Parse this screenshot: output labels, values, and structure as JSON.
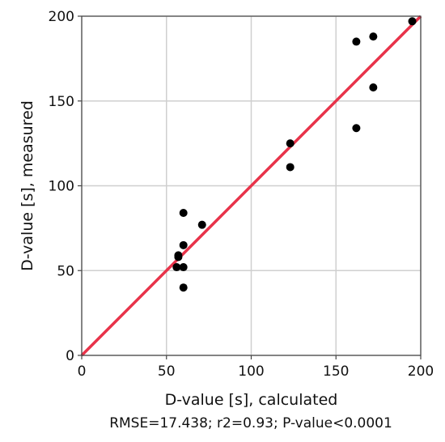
{
  "chart_data": {
    "type": "scatter",
    "xlabel": "D-value [s], calculated",
    "ylabel": "D-value [s], measured",
    "caption": "RMSE=17.438; r2=0.93; P-value<0.0001",
    "xlim": [
      0,
      200
    ],
    "ylim": [
      0,
      200
    ],
    "xticks": [
      0,
      50,
      100,
      150,
      200
    ],
    "yticks": [
      0,
      50,
      100,
      150,
      200
    ],
    "grid": true,
    "points": [
      {
        "x": 56,
        "y": 52
      },
      {
        "x": 57,
        "y": 58
      },
      {
        "x": 57,
        "y": 59
      },
      {
        "x": 60,
        "y": 84
      },
      {
        "x": 60,
        "y": 65
      },
      {
        "x": 60,
        "y": 52
      },
      {
        "x": 60,
        "y": 40
      },
      {
        "x": 71,
        "y": 77
      },
      {
        "x": 123,
        "y": 125
      },
      {
        "x": 123,
        "y": 111
      },
      {
        "x": 162,
        "y": 185
      },
      {
        "x": 162,
        "y": 134
      },
      {
        "x": 172,
        "y": 188
      },
      {
        "x": 172,
        "y": 158
      },
      {
        "x": 195,
        "y": 197
      }
    ],
    "reference_line": {
      "type": "identity",
      "from": [
        0,
        0
      ],
      "to": [
        200,
        200
      ]
    },
    "colors": {
      "points": "#000000",
      "reference_line": "#e8334a",
      "grid": "#cfcfcf",
      "frame": "#444444"
    }
  }
}
